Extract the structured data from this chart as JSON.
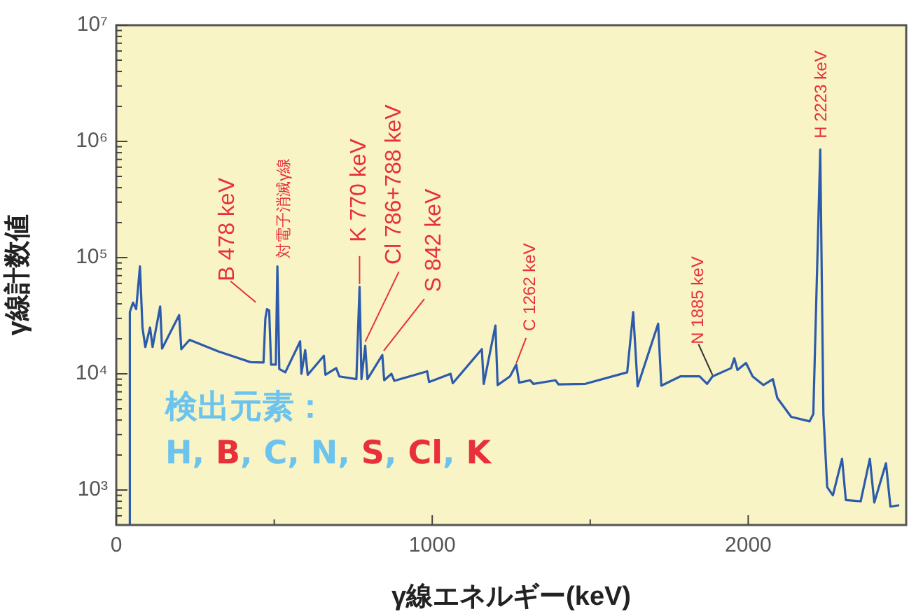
{
  "chart_data": {
    "type": "line",
    "xlabel": "γ線エネルギー(keV)",
    "ylabel": "γ線計数値",
    "x": [
      40,
      43,
      53,
      63,
      75,
      83,
      92,
      107,
      115,
      139,
      145,
      199,
      206,
      232,
      323,
      425,
      466,
      472,
      477,
      484,
      490,
      505,
      510,
      516,
      535,
      582,
      586,
      598,
      606,
      657,
      662,
      696,
      706,
      760,
      770,
      776,
      788,
      795,
      842,
      848,
      871,
      880,
      984,
      990,
      1058,
      1065,
      1157,
      1163,
      1200,
      1207,
      1246,
      1266,
      1275,
      1310,
      1320,
      1390,
      1400,
      1485,
      1617,
      1636,
      1650,
      1715,
      1725,
      1785,
      1846,
      1870,
      1887,
      1946,
      1956,
      1966,
      1993,
      2014,
      2048,
      2078,
      2092,
      2136,
      2194,
      2206,
      2228,
      2238,
      2250,
      2268,
      2297,
      2309,
      2356,
      2385,
      2399,
      2436,
      2450,
      2478
    ],
    "series": [
      {
        "color": "#2d5bab",
        "values": [
          500,
          34000,
          41000,
          36000,
          84000,
          25000,
          17000,
          25000,
          17000,
          38000,
          16500,
          32000,
          16300,
          19600,
          15600,
          12600,
          12500,
          30000,
          36000,
          35000,
          12000,
          12000,
          84000,
          11000,
          10300,
          19000,
          10000,
          16000,
          9800,
          14300,
          9800,
          11200,
          9500,
          9000,
          56000,
          9000,
          17400,
          9000,
          14500,
          8800,
          10000,
          8700,
          10500,
          8500,
          10000,
          8300,
          16300,
          8200,
          26000,
          8000,
          9500,
          12000,
          8400,
          8800,
          8200,
          8800,
          8100,
          8200,
          10300,
          34000,
          7800,
          27000,
          7900,
          9500,
          9500,
          8200,
          9500,
          11200,
          13600,
          10800,
          12400,
          9500,
          8000,
          9000,
          6200,
          4260,
          3900,
          4500,
          850000,
          4500,
          1060,
          900,
          1860,
          820,
          800,
          1860,
          780,
          1700,
          720,
          740
        ]
      }
    ],
    "xlim": [
      0,
      2500
    ],
    "xticks": [
      0,
      {
        "value": 500,
        "label": null
      },
      1000,
      {
        "value": 1500,
        "label": null
      },
      2000
    ],
    "ylim": [
      500,
      10000000
    ],
    "log": true,
    "yticks": [
      {
        "value": 600,
        "label": null
      },
      {
        "value": 700,
        "label": null
      },
      {
        "value": 800,
        "label": null
      },
      {
        "value": 900,
        "label": null
      },
      {
        "value": 1000,
        "label": "10³"
      },
      {
        "value": 2000,
        "label": null
      },
      {
        "value": 3000,
        "label": null
      },
      {
        "value": 4000,
        "label": null
      },
      {
        "value": 5000,
        "label": null
      },
      {
        "value": 6000,
        "label": null
      },
      {
        "value": 7000,
        "label": null
      },
      {
        "value": 8000,
        "label": null
      },
      {
        "value": 9000,
        "label": null
      },
      {
        "value": 10000,
        "label": "10⁴"
      },
      {
        "value": 20000,
        "label": null
      },
      {
        "value": 30000,
        "label": null
      },
      {
        "value": 40000,
        "label": null
      },
      {
        "value": 50000,
        "label": null
      },
      {
        "value": 60000,
        "label": null
      },
      {
        "value": 70000,
        "label": null
      },
      {
        "value": 80000,
        "label": null
      },
      {
        "value": 90000,
        "label": null
      },
      {
        "value": 100000,
        "label": "10⁵"
      },
      {
        "value": 200000,
        "label": null
      },
      {
        "value": 300000,
        "label": null
      },
      {
        "value": 400000,
        "label": null
      },
      {
        "value": 500000,
        "label": null
      },
      {
        "value": 600000,
        "label": null
      },
      {
        "value": 700000,
        "label": null
      },
      {
        "value": 800000,
        "label": null
      },
      {
        "value": 900000,
        "label": null
      },
      {
        "value": 1000000,
        "label": "10⁶"
      },
      {
        "value": 2000000,
        "label": null
      },
      {
        "value": 3000000,
        "label": null
      },
      {
        "value": 4000000,
        "label": null
      },
      {
        "value": 5000000,
        "label": null
      },
      {
        "value": 6000000,
        "label": null
      },
      {
        "value": 7000000,
        "label": null
      },
      {
        "value": 8000000,
        "label": null
      },
      {
        "value": 9000000,
        "label": null
      },
      {
        "value": 10000000,
        "label": "10⁷"
      }
    ],
    "grid": false,
    "legend": false,
    "marker": "none",
    "line_style": "solid",
    "annotations": [
      {
        "text": "B 478 keV",
        "x": 477,
        "y": 36000
      },
      {
        "text": "対電子消滅γ線",
        "x": 510,
        "y": 84000
      },
      {
        "text": "K 770 keV",
        "x": 770,
        "y": 56000
      },
      {
        "text": "Cl 786+788 keV",
        "x": 788,
        "y": 17400
      },
      {
        "text": "S 842 keV",
        "x": 842,
        "y": 14500
      },
      {
        "text": "C 1262 keV",
        "x": 1266,
        "y": 12000
      },
      {
        "text": "N 1885 keV",
        "x": 1887,
        "y": 9500
      },
      {
        "text": "H 2223 keV",
        "x": 2228,
        "y": 850000
      },
      "検出元素：",
      "H, B, C, N, S, Cl, K"
    ]
  }
}
